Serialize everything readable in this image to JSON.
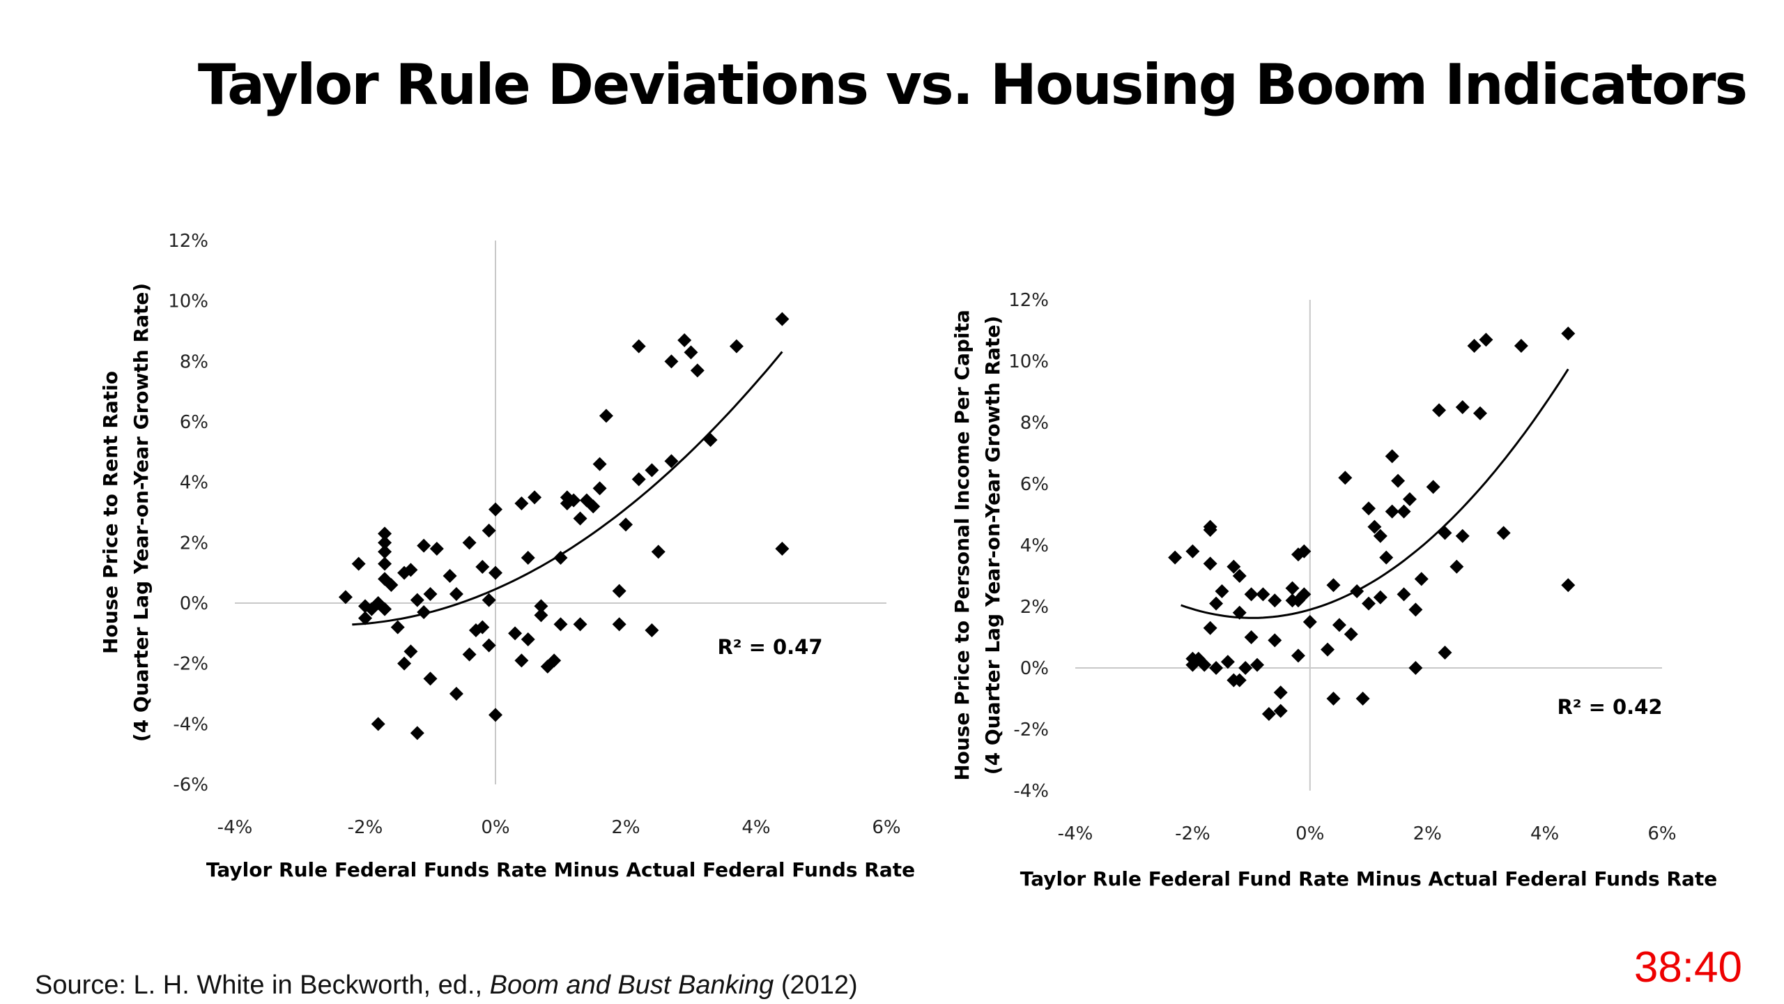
{
  "title": "Taylor Rule Deviations vs. Housing Boom Indicators",
  "source": {
    "prefix": "Source: L. H. White in Beckworth, ed., ",
    "book": "Boom and Bust Banking",
    "suffix": " (2012)"
  },
  "timer": "38:40",
  "chart_data": [
    {
      "type": "scatter",
      "title": "",
      "xlabel": "Taylor Rule Federal Funds Rate Minus Actual Federal Funds Rate",
      "ylabel": [
        "House Price to Rent  Ratio",
        "(4 Quarter Lag Year-on-Year Growth Rate)"
      ],
      "xlim": [
        -4,
        6
      ],
      "ylim": [
        -6,
        12
      ],
      "xticks": [
        "-4%",
        "-2%",
        "0%",
        "2%",
        "4%",
        "6%"
      ],
      "yticks": [
        "-6%",
        "-4%",
        "-2%",
        "0%",
        "2%",
        "4%",
        "6%",
        "8%",
        "10%",
        "12%"
      ],
      "grid": false,
      "annotation": "R² = 0.47",
      "trendline": {
        "type": "polynomial",
        "degree": 2,
        "x_range": [
          -2.2,
          4.4
        ],
        "coefficients": [
          0.46,
          0.95,
          0.19
        ]
      },
      "points": [
        [
          -2.3,
          0.2
        ],
        [
          -2.1,
          1.3
        ],
        [
          -2.0,
          -0.5
        ],
        [
          -2.0,
          -0.1
        ],
        [
          -1.9,
          -0.2
        ],
        [
          -1.8,
          -4.0
        ],
        [
          -1.8,
          0.0
        ],
        [
          -1.7,
          -0.2
        ],
        [
          -1.7,
          0.8
        ],
        [
          -1.7,
          1.3
        ],
        [
          -1.7,
          1.7
        ],
        [
          -1.7,
          2.0
        ],
        [
          -1.7,
          2.3
        ],
        [
          -1.6,
          0.6
        ],
        [
          -1.5,
          -0.8
        ],
        [
          -1.4,
          1.0
        ],
        [
          -1.4,
          -2.0
        ],
        [
          -1.3,
          1.1
        ],
        [
          -1.3,
          -1.6
        ],
        [
          -1.2,
          0.1
        ],
        [
          -1.2,
          -4.3
        ],
        [
          -1.1,
          -0.3
        ],
        [
          -1.1,
          1.9
        ],
        [
          -1.0,
          0.3
        ],
        [
          -1.0,
          -2.5
        ],
        [
          -0.9,
          1.8
        ],
        [
          -0.7,
          0.9
        ],
        [
          -0.6,
          0.3
        ],
        [
          -0.6,
          -3.0
        ],
        [
          -0.4,
          2.0
        ],
        [
          -0.4,
          -1.7
        ],
        [
          -0.3,
          -0.9
        ],
        [
          -0.2,
          1.2
        ],
        [
          -0.2,
          -0.8
        ],
        [
          -0.1,
          -1.4
        ],
        [
          -0.1,
          2.4
        ],
        [
          -0.1,
          0.1
        ],
        [
          0.0,
          3.1
        ],
        [
          0.0,
          1.0
        ],
        [
          0.0,
          -3.7
        ],
        [
          0.3,
          -1.0
        ],
        [
          0.4,
          3.3
        ],
        [
          0.4,
          -1.9
        ],
        [
          0.5,
          1.5
        ],
        [
          0.5,
          -1.2
        ],
        [
          0.6,
          3.5
        ],
        [
          0.7,
          -0.1
        ],
        [
          0.7,
          -0.4
        ],
        [
          0.8,
          -2.1
        ],
        [
          0.9,
          -1.9
        ],
        [
          1.0,
          -0.7
        ],
        [
          1.0,
          1.5
        ],
        [
          1.1,
          3.5
        ],
        [
          1.1,
          3.3
        ],
        [
          1.2,
          3.4
        ],
        [
          1.3,
          2.8
        ],
        [
          1.3,
          -0.7
        ],
        [
          1.4,
          3.4
        ],
        [
          1.5,
          3.2
        ],
        [
          1.6,
          3.8
        ],
        [
          1.6,
          4.6
        ],
        [
          1.7,
          6.2
        ],
        [
          1.9,
          0.4
        ],
        [
          1.9,
          -0.7
        ],
        [
          2.0,
          2.6
        ],
        [
          2.2,
          4.1
        ],
        [
          2.2,
          8.5
        ],
        [
          2.4,
          4.4
        ],
        [
          2.4,
          -0.9
        ],
        [
          2.5,
          1.7
        ],
        [
          2.7,
          4.7
        ],
        [
          2.7,
          8.0
        ],
        [
          2.9,
          8.7
        ],
        [
          3.0,
          8.3
        ],
        [
          3.1,
          7.7
        ],
        [
          3.3,
          5.4
        ],
        [
          3.7,
          8.5
        ],
        [
          4.4,
          9.4
        ],
        [
          4.4,
          1.8
        ]
      ]
    },
    {
      "type": "scatter",
      "title": "",
      "xlabel": "Taylor Rule Federal Fund Rate Minus Actual Federal Funds Rate",
      "ylabel": [
        "House Price to Personal Income Per Capita",
        "(4 Quarter Lag Year-on-Year Growth Rate)"
      ],
      "xlim": [
        -4,
        6
      ],
      "ylim": [
        -4,
        12
      ],
      "xticks": [
        "-4%",
        "-2%",
        "0%",
        "2%",
        "4%",
        "6%"
      ],
      "yticks": [
        "-4%",
        "-2%",
        "0%",
        "2%",
        "4%",
        "6%",
        "8%",
        "10%",
        "12%"
      ],
      "grid": false,
      "annotation": "R² = 0.42",
      "trendline": {
        "type": "polynomial",
        "degree": 2,
        "x_range": [
          -2.2,
          4.4
        ],
        "coefficients": [
          1.9,
          0.55,
          0.28
        ]
      },
      "points": [
        [
          -2.3,
          3.6
        ],
        [
          -2.0,
          3.8
        ],
        [
          -2.0,
          0.3
        ],
        [
          -2.0,
          0.1
        ],
        [
          -1.9,
          0.3
        ],
        [
          -1.8,
          0.1
        ],
        [
          -1.7,
          1.3
        ],
        [
          -1.7,
          4.5
        ],
        [
          -1.7,
          4.6
        ],
        [
          -1.7,
          3.4
        ],
        [
          -1.6,
          2.1
        ],
        [
          -1.6,
          0.0
        ],
        [
          -1.5,
          2.5
        ],
        [
          -1.4,
          0.2
        ],
        [
          -1.3,
          3.3
        ],
        [
          -1.3,
          -0.4
        ],
        [
          -1.2,
          3.0
        ],
        [
          -1.2,
          1.8
        ],
        [
          -1.2,
          -0.4
        ],
        [
          -1.1,
          0.0
        ],
        [
          -1.0,
          1.0
        ],
        [
          -1.0,
          2.4
        ],
        [
          -0.9,
          0.1
        ],
        [
          -0.8,
          2.4
        ],
        [
          -0.7,
          -1.5
        ],
        [
          -0.6,
          0.9
        ],
        [
          -0.6,
          2.2
        ],
        [
          -0.5,
          -0.8
        ],
        [
          -0.5,
          -1.4
        ],
        [
          -0.3,
          2.6
        ],
        [
          -0.3,
          2.2
        ],
        [
          -0.2,
          0.4
        ],
        [
          -0.2,
          2.2
        ],
        [
          -0.2,
          3.7
        ],
        [
          -0.1,
          3.8
        ],
        [
          -0.1,
          2.4
        ],
        [
          0.0,
          1.5
        ],
        [
          0.3,
          0.6
        ],
        [
          0.4,
          -1.0
        ],
        [
          0.4,
          2.7
        ],
        [
          0.5,
          1.4
        ],
        [
          0.6,
          6.2
        ],
        [
          0.7,
          1.1
        ],
        [
          0.8,
          2.5
        ],
        [
          0.9,
          -1.0
        ],
        [
          1.0,
          5.2
        ],
        [
          1.0,
          2.1
        ],
        [
          1.1,
          4.6
        ],
        [
          1.2,
          4.3
        ],
        [
          1.2,
          2.3
        ],
        [
          1.3,
          3.6
        ],
        [
          1.4,
          5.1
        ],
        [
          1.4,
          6.9
        ],
        [
          1.5,
          6.1
        ],
        [
          1.6,
          5.1
        ],
        [
          1.6,
          2.4
        ],
        [
          1.7,
          5.5
        ],
        [
          1.8,
          0.0
        ],
        [
          1.8,
          1.9
        ],
        [
          1.9,
          2.9
        ],
        [
          2.1,
          5.9
        ],
        [
          2.2,
          8.4
        ],
        [
          2.3,
          4.4
        ],
        [
          2.3,
          0.5
        ],
        [
          2.5,
          3.3
        ],
        [
          2.6,
          8.5
        ],
        [
          2.6,
          4.3
        ],
        [
          2.8,
          10.5
        ],
        [
          2.9,
          8.3
        ],
        [
          3.0,
          10.7
        ],
        [
          3.3,
          4.4
        ],
        [
          3.6,
          10.5
        ],
        [
          4.4,
          10.9
        ],
        [
          4.4,
          2.7
        ]
      ]
    }
  ]
}
